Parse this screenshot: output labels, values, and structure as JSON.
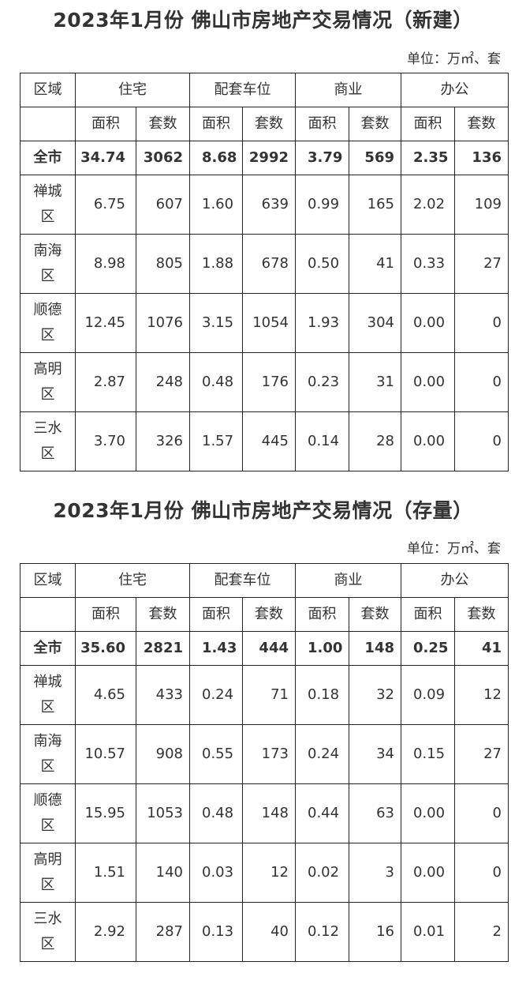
{
  "tables": [
    {
      "title": "2023年1月份  佛山市房地产交易情况（新建）",
      "unit": "单位：万㎡、套",
      "header": {
        "region": "区域",
        "groups": [
          "住宅",
          "配套车位",
          "商业",
          "办公"
        ],
        "sub": [
          "面积",
          "套数",
          "面积",
          "套数",
          "面积",
          "套数",
          "面积",
          "套数"
        ]
      },
      "rows": [
        {
          "name": [
            "全市"
          ],
          "total": true,
          "values": [
            "34.74",
            "3062",
            "8.68",
            "2992",
            "3.79",
            "569",
            "2.35",
            "136"
          ]
        },
        {
          "name": [
            "禅城",
            "区"
          ],
          "values": [
            "6.75",
            "607",
            "1.60",
            "639",
            "0.99",
            "165",
            "2.02",
            "109"
          ]
        },
        {
          "name": [
            "南海",
            "区"
          ],
          "values": [
            "8.98",
            "805",
            "1.88",
            "678",
            "0.50",
            "41",
            "0.33",
            "27"
          ]
        },
        {
          "name": [
            "顺德",
            "区"
          ],
          "values": [
            "12.45",
            "1076",
            "3.15",
            "1054",
            "1.93",
            "304",
            "0.00",
            "0"
          ]
        },
        {
          "name": [
            "高明",
            "区"
          ],
          "values": [
            "2.87",
            "248",
            "0.48",
            "176",
            "0.23",
            "31",
            "0.00",
            "0"
          ]
        },
        {
          "name": [
            "三水",
            "区"
          ],
          "values": [
            "3.70",
            "326",
            "1.57",
            "445",
            "0.14",
            "28",
            "0.00",
            "0"
          ]
        }
      ]
    },
    {
      "title": "2023年1月份  佛山市房地产交易情况（存量）",
      "unit": "单位：万㎡、套",
      "header": {
        "region": "区域",
        "groups": [
          "住宅",
          "配套车位",
          "商业",
          "办公"
        ],
        "sub": [
          "面积",
          "套数",
          "面积",
          "套数",
          "面积",
          "套数",
          "面积",
          "套数"
        ]
      },
      "rows": [
        {
          "name": [
            "全市"
          ],
          "total": true,
          "values": [
            "35.60",
            "2821",
            "1.43",
            "444",
            "1.00",
            "148",
            "0.25",
            "41"
          ]
        },
        {
          "name": [
            "禅城",
            "区"
          ],
          "values": [
            "4.65",
            "433",
            "0.24",
            "71",
            "0.18",
            "32",
            "0.09",
            "12"
          ]
        },
        {
          "name": [
            "南海",
            "区"
          ],
          "values": [
            "10.57",
            "908",
            "0.55",
            "173",
            "0.24",
            "34",
            "0.15",
            "27"
          ]
        },
        {
          "name": [
            "顺德",
            "区"
          ],
          "values": [
            "15.95",
            "1053",
            "0.48",
            "148",
            "0.44",
            "63",
            "0.00",
            "0"
          ]
        },
        {
          "name": [
            "高明",
            "区"
          ],
          "values": [
            "1.51",
            "140",
            "0.03",
            "12",
            "0.02",
            "3",
            "0.00",
            "0"
          ]
        },
        {
          "name": [
            "三水",
            "区"
          ],
          "values": [
            "2.92",
            "287",
            "0.13",
            "40",
            "0.12",
            "16",
            "0.01",
            "2"
          ]
        }
      ]
    }
  ]
}
